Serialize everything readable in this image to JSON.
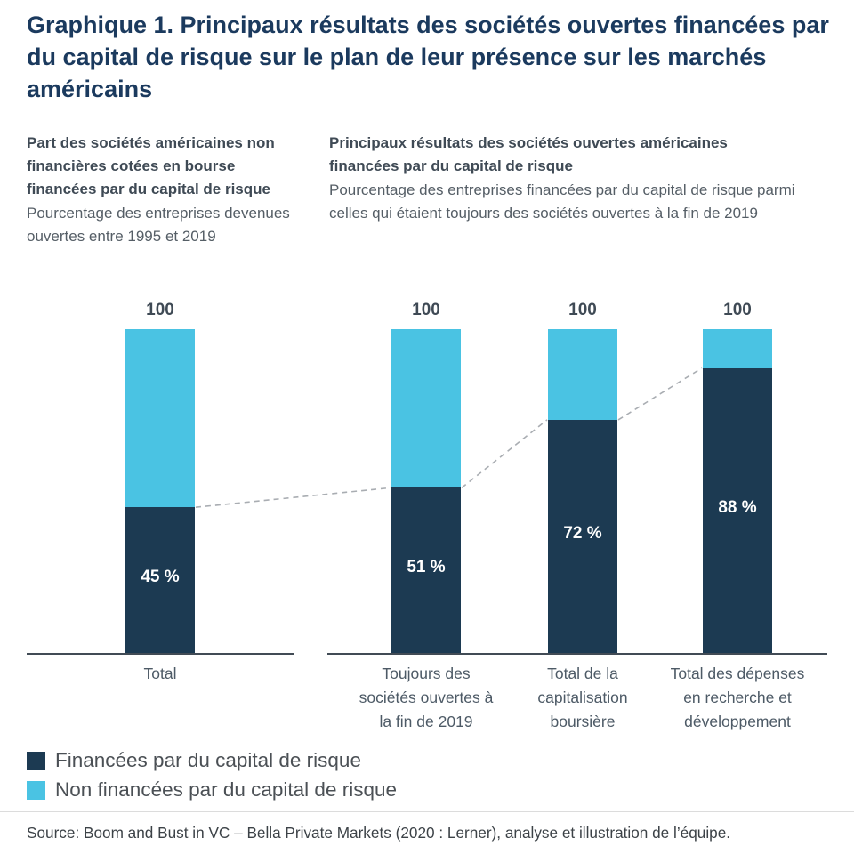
{
  "header": {
    "title": "Graphique 1. Principaux résultats des sociétés ouvertes financées par du capital de risque sur le plan de leur présence sur les marchés américains"
  },
  "panels": {
    "left": {
      "heading": "Part des sociétés américaines non financières cotées en bourse financées par du capital de risque",
      "subheading": "Pourcentage des entreprises devenues ouvertes entre 1995 et 2019"
    },
    "right": {
      "heading": "Principaux résultats des sociétés ouvertes américaines financées par du capital de risque",
      "subheading": "Pourcentage des entreprises financées par du capital de risque parmi celles qui étaient toujours des sociétés ouvertes à la fin de 2019"
    }
  },
  "chart_data": {
    "type": "bar",
    "stacked": true,
    "title": "Graphique 1. Principaux résultats des sociétés ouvertes financées par du capital de risque sur le plan de leur présence sur les marchés américains",
    "categories": [
      "Total",
      "Toujours des sociétés ouvertes à la fin de 2019",
      "Total de la capitalisation boursière",
      "Total des dépenses en recherche et développement"
    ],
    "series": [
      {
        "name": "Financées par du capital de risque",
        "color": "#1c3a52",
        "values": [
          45,
          51,
          72,
          88
        ]
      },
      {
        "name": "Non financées par du capital de risque",
        "color": "#4ac3e3",
        "values": [
          55,
          49,
          28,
          12
        ]
      }
    ],
    "bar_totals": [
      100,
      100,
      100,
      100
    ],
    "total_labels": [
      "100",
      "100",
      "100",
      "100"
    ],
    "value_labels": [
      "45 %",
      "51 %",
      "72 %",
      "88 %"
    ],
    "ylim": [
      0,
      100
    ],
    "grid": false,
    "legend_position": "bottom-left",
    "annotations": "dashed gray line connecting the tops of the VC-financed (dark) segments across bars"
  },
  "legend": {
    "items": [
      {
        "label": "Financées par du capital de risque",
        "color": "#1c3a52"
      },
      {
        "label": "Non financées par du capital de risque",
        "color": "#4ac3e3"
      }
    ]
  },
  "source": "Source: Boom and Bust in VC – Bella Private Markets (2020 : Lerner), analyse et illustration de l’équipe."
}
